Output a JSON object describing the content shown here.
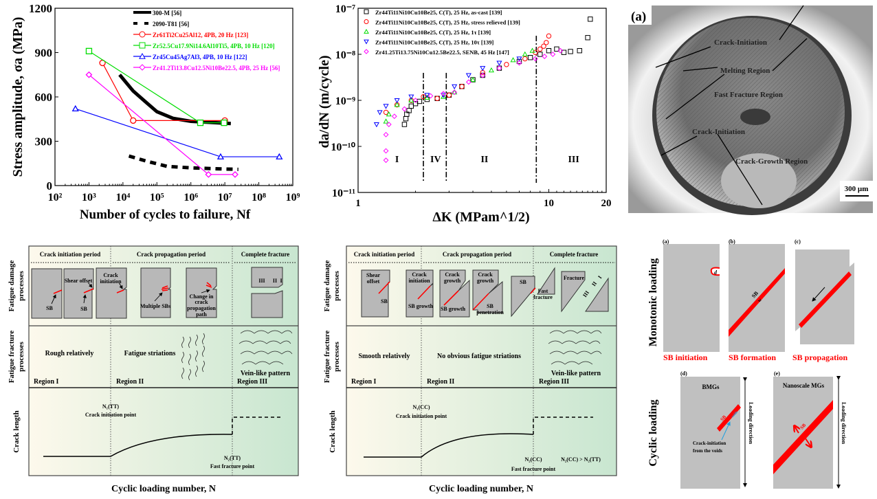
{
  "chart_data": [
    {
      "type": "line",
      "ylabel": "Stress amplitude, σa (MPa)",
      "xlabel": "Number of cycles to failure, Nf",
      "x_scale": "log",
      "xlim": [
        100,
        1000000000
      ],
      "ylim": [
        0,
        1200
      ],
      "x_tick_labels": [
        "10²",
        "10³",
        "10⁴",
        "10⁵",
        "10⁶",
        "10⁷",
        "10⁸",
        "10⁹"
      ],
      "y_tick_labels": [
        "0",
        "300",
        "600",
        "900",
        "1200"
      ],
      "y_ticks": [
        0,
        300,
        600,
        900,
        1200
      ],
      "legend_position": "top-right",
      "series": [
        {
          "name": "300-M [56]",
          "color": "#000000",
          "style": "thick-solid",
          "marker": "none",
          "x": [
            8000,
            20000,
            50000,
            100000,
            300000,
            1000000,
            15000000
          ],
          "y": [
            750,
            640,
            560,
            500,
            455,
            435,
            420
          ]
        },
        {
          "name": "2090-T81 [56]",
          "color": "#000000",
          "style": "thick-dashed",
          "marker": "none",
          "x": [
            15000,
            50000,
            200000,
            1000000,
            10000000,
            25000000
          ],
          "y": [
            200,
            165,
            130,
            120,
            112,
            110
          ]
        },
        {
          "name": "Zr61Ti2Cu25Al12, 4PB, 20 Hz [123]",
          "color": "#ff0000",
          "style": "solid",
          "marker": "circle",
          "x": [
            2500,
            20000,
            10000000
          ],
          "y": [
            830,
            440,
            440
          ]
        },
        {
          "name": "Zr52.5Cu17.9Ni14.6Al10Ti5, 4PB, 10 Hz [120]",
          "color": "#00dd00",
          "style": "solid",
          "marker": "square",
          "x": [
            1000,
            1900000,
            9500000
          ],
          "y": [
            910,
            425,
            425
          ]
        },
        {
          "name": "Zr45Cu45Ag7Al3, 4PB, 10 Hz [122]",
          "color": "#0000ff",
          "style": "solid",
          "marker": "triangle",
          "x": [
            400,
            7500000,
            400000000
          ],
          "y": [
            520,
            195,
            195
          ]
        },
        {
          "name": "Zr41.2Ti13.8Cu12.5Ni10Be22.5, 4PB, 25 Hz [56]",
          "color": "#ff00ff",
          "style": "solid",
          "marker": "diamond",
          "x": [
            1000,
            3300000,
            20000000
          ],
          "y": [
            750,
            75,
            75
          ]
        }
      ]
    },
    {
      "type": "scatter",
      "ylabel": "da/dN (m/cycle)",
      "xlabel": "ΔK (MPam^1/2)",
      "x_scale": "log",
      "y_scale": "log",
      "xlim": [
        1,
        20
      ],
      "ylim": [
        1e-11,
        1e-07
      ],
      "x_tick_labels": [
        "1",
        "10",
        "20"
      ],
      "x_ticks": [
        1,
        10,
        20
      ],
      "y_tick_labels": [
        "10⁻¹¹",
        "10⁻¹⁰",
        "10⁻⁹",
        "10⁻⁸",
        "10⁻⁷"
      ],
      "legend_position": "top-left",
      "regions": [
        {
          "label": "I",
          "x": 1.6
        },
        {
          "label": "IV",
          "x": 2.55
        },
        {
          "label": "II",
          "x": 4.6
        },
        {
          "label": "III",
          "x": 13.5
        }
      ],
      "region_boundaries": [
        2.2,
        2.9,
        8.6
      ],
      "series": [
        {
          "name": "Zr44Ti11Ni10Cu10Be25, C(T), 25 Hz, as-cast [139]",
          "color": "#000000",
          "marker": "square",
          "x": [
            1.75,
            1.78,
            1.8,
            1.85,
            1.9,
            2.0,
            2.1,
            2.3,
            2.6,
            3.0,
            3.5,
            4.0,
            4.5,
            5.5,
            7,
            8,
            9,
            10,
            11,
            12,
            13,
            14.5,
            16,
            16.5
          ],
          "y": [
            3e-10,
            4e-10,
            5e-10,
            6e-10,
            7.5e-10,
            8.5e-10,
            9.5e-10,
            1.05e-09,
            1.1e-09,
            1.3e-09,
            2e-09,
            2.8e-09,
            3.5e-09,
            5e-09,
            7e-09,
            8.5e-09,
            1e-08,
            1.2e-08,
            1.3e-08,
            1.1e-08,
            1.15e-08,
            1.2e-08,
            2.3e-08,
            5.8e-08
          ]
        },
        {
          "name": "Zr44Ti11Ni10Cu10Be25, C(T), 25 Hz, stress relieved [139]",
          "color": "#ff0000",
          "marker": "circle",
          "x": [
            1.4,
            1.6,
            1.9,
            2.2,
            2.6,
            3,
            3.5,
            4.5,
            6,
            7.5,
            8.5,
            9.0,
            9.4,
            9.7,
            10
          ],
          "y": [
            5.5e-10,
            8e-10,
            1e-09,
            1.2e-09,
            1.1e-09,
            1.3e-09,
            2e-09,
            4e-09,
            6e-09,
            8e-09,
            1.1e-08,
            1.3e-08,
            1.5e-08,
            1.8e-08,
            2.5e-08
          ]
        },
        {
          "name": "Zr44Ti11Ni10Cu10Be25, C(T), 25 Hz, 1τ [139]",
          "color": "#00dd00",
          "marker": "triangle",
          "x": [
            1.4,
            1.45,
            1.6,
            1.9,
            2.3,
            2.8,
            3.2,
            4,
            5,
            6.5,
            7.5,
            8.2
          ],
          "y": [
            3.5e-10,
            5e-10,
            8e-10,
            1e-09,
            1.15e-09,
            1.2e-09,
            1.5e-09,
            2.8e-09,
            4.5e-09,
            7.5e-09,
            1e-08,
            1.2e-08
          ]
        },
        {
          "name": "Zr44Ti11Ni10Cu10Be25, C(T), 25 Hz, 10τ [139]",
          "color": "#0000ff",
          "marker": "triangle-down",
          "x": [
            1.25,
            1.3,
            1.4,
            1.6,
            1.9,
            2.3,
            2.8,
            3.2,
            3.8,
            4.5,
            5.5,
            7
          ],
          "y": [
            3e-10,
            5.5e-10,
            7.5e-10,
            1e-09,
            1.2e-09,
            1.3e-09,
            1.3e-09,
            2e-09,
            3.5e-09,
            5e-09,
            6.5e-09,
            8e-09
          ]
        },
        {
          "name": "Zr41.25Ti13.75Ni10Cu12.5Be22.5, SENB, 45 Hz [147]",
          "color": "#ff00ff",
          "marker": "diamond",
          "x": [
            1.4,
            1.4,
            1.4,
            1.45,
            1.55,
            1.75,
            2.0,
            2.4,
            2.8,
            3.2,
            3.8,
            4.5,
            5.5,
            7,
            8.5,
            9.5,
            10.5,
            11.5
          ],
          "y": [
            5e-11,
            8e-11,
            1.8e-10,
            3e-10,
            4.5e-10,
            6.5e-10,
            1e-09,
            1.25e-09,
            1.4e-09,
            1.5e-09,
            2.5e-09,
            3.5e-09,
            5e-09,
            6.5e-09,
            8e-09,
            9e-09,
            1e-08,
            1.2e-08
          ]
        }
      ]
    }
  ],
  "photo": {
    "panel_label": "(a)",
    "labels": [
      "Crack-Initiation",
      "Melting Region",
      "Fast Fracture Region",
      "Crack-Initiation",
      "Crack-Growth Region"
    ],
    "scale_bar": "300 µm"
  },
  "diagram_tt": {
    "periods": [
      "Crack initiation period",
      "Crack propagation period",
      "Complete fracture"
    ],
    "row1": [
      "Fatigue damage",
      "processes"
    ],
    "row2": [
      "Fatigue fracture",
      "processes"
    ],
    "row3": "Crack length",
    "specimen_labels": {
      "sb1": "SB",
      "shear_offset": "Shear offset",
      "sb2": "SB",
      "crack": "Crack",
      "initiation": "initiation",
      "multiple": "Multiple SBs",
      "change1": "Change in",
      "change2": "crack",
      "change3": "propagation",
      "change4": "path",
      "r3": "III",
      "r2": "II",
      "r1": "I"
    },
    "fracture": [
      "Rough relatively",
      "Fatigue striations",
      "Vein-like pattern"
    ],
    "regions": [
      "Region I",
      "Region II",
      "Region III"
    ],
    "n1": "N₁(TT)",
    "n1_desc": "Crack initiation point",
    "n2": "N₂(TT)",
    "n2_desc": "Fast fracture point",
    "xlabel": "Cyclic loading number, N"
  },
  "diagram_cc": {
    "periods": [
      "Crack initiation period",
      "Crack propagation period",
      "Complete fracture"
    ],
    "row1": [
      "Fatigue damage",
      "processes"
    ],
    "row2": [
      "Fatigue fracture",
      "processes"
    ],
    "row3": "Crack length",
    "specimen_labels": {
      "shear": "Shear",
      "offset": "offset",
      "sb": "SB",
      "crack1": "Crack",
      "init": "initiation",
      "sbg1": "SB growth",
      "crack2": "Crack",
      "growth2": "growth",
      "sbg2": "SB growth",
      "crack3": "Crack",
      "growth3": "growth",
      "sbp1": "SB",
      "sbp2": "penetration",
      "sb4": "SB",
      "fast1": "Fast",
      "fast2": "fracture",
      "fracture": "Fracture",
      "r3": "III",
      "r2": "II",
      "r1": "I"
    },
    "fracture": [
      "Smooth relatively",
      "No obvious fatigue striations",
      "Vein-like pattern"
    ],
    "regions": [
      "Region I",
      "Region II",
      "Region III"
    ],
    "n1": "N₁(CC)",
    "n1_desc": "Crack initiation point",
    "n2": "N₂(CC)",
    "n2_cmp": "N₂(CC) > N₂(TT)",
    "n2_desc": "Fast fracture point",
    "xlabel": "Cyclic loading number, N"
  },
  "sb_diagram": {
    "monotonic": "Monotonic loading",
    "cyclic": "Cyclic  loading",
    "panels": [
      "(a)",
      "(b)",
      "(c)",
      "(d)",
      "(e)"
    ],
    "captions": [
      "SB initiation",
      "SB formation",
      "SB propagation"
    ],
    "d_symbol": "d",
    "sb": "SB",
    "w": "w",
    "bmgs": "BMGs",
    "nano": "Nanoscale MGs",
    "voids": "voids",
    "crack1": "Crack-initiation",
    "crack2": "from the voids",
    "loading": "Loading direction",
    "red": "#ff0000",
    "gray": "#c0c0c0"
  }
}
